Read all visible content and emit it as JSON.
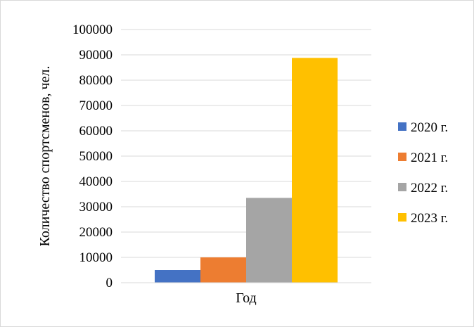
{
  "chart_data": {
    "type": "bar",
    "categories": [
      "Год"
    ],
    "series": [
      {
        "name": "2020 г.",
        "values": [
          5000
        ],
        "color": "#4472C4"
      },
      {
        "name": "2021 г.",
        "values": [
          10000
        ],
        "color": "#ED7D31"
      },
      {
        "name": "2022 г.",
        "values": [
          33500
        ],
        "color": "#A5A5A5"
      },
      {
        "name": "2023 г.",
        "values": [
          88800
        ],
        "color": "#FFC000"
      }
    ],
    "title": "",
    "xlabel": "Год",
    "ylabel": "Количество спортсменов, чел.",
    "ylim": [
      0,
      100000
    ],
    "yticks": [
      "0",
      "10000",
      "20000",
      "30000",
      "40000",
      "50000",
      "60000",
      "70000",
      "80000",
      "90000",
      "100000"
    ],
    "grid": true,
    "legend_position": "right"
  }
}
